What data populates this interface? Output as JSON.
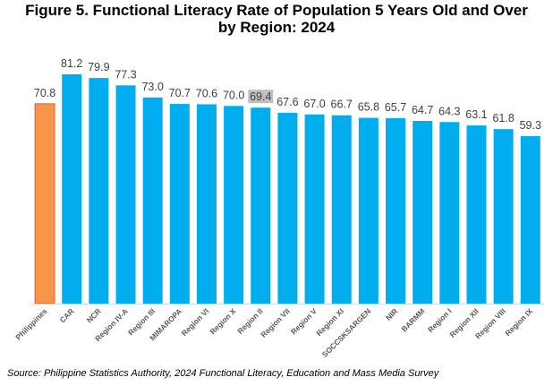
{
  "title_line1": "Figure 5. Functional Literacy Rate of Population 5 Years Old and Over",
  "title_line2": "by Region: 2024",
  "source": "Source: Philippine Statistics Authority, 2024 Functional Literacy, Education and Mass Media Survey",
  "colors": {
    "national_bar": "#F79646",
    "region_bar": "#00AEEF",
    "national_bar_border": "#C0504D",
    "highlight_label_bg": "#BFBFBF"
  },
  "chart_data": {
    "type": "bar",
    "title": "Figure 5. Functional Literacy Rate of Population 5 Years Old and Over by Region: 2024",
    "xlabel": "",
    "ylabel": "",
    "ylim": [
      0,
      90
    ],
    "grid": false,
    "legend": "none",
    "categories": [
      "Philippines",
      "CAR",
      "NCR",
      "Region IV-A",
      "Region III",
      "MIMAROPA",
      "Region VI",
      "Region X",
      "Region II",
      "Region VII",
      "Region V",
      "Region XI",
      "SOCCSKSARGEN",
      "NIR",
      "BARMM",
      "Region I",
      "Region XII",
      "Region VIII",
      "Region IX"
    ],
    "values": [
      70.8,
      81.2,
      79.9,
      77.3,
      73.0,
      70.7,
      70.6,
      70.0,
      69.4,
      67.6,
      67.0,
      66.7,
      65.8,
      65.7,
      64.7,
      64.3,
      63.1,
      61.8,
      59.3
    ],
    "value_labels": [
      "70.8",
      "81.2",
      "79.9",
      "77.3",
      "73.0",
      "70.7",
      "70.6",
      "70.0",
      "69.4",
      "67.6",
      "67.0",
      "66.7",
      "65.8",
      "65.7",
      "64.7",
      "64.3",
      "63.1",
      "61.8",
      "59.3"
    ],
    "highlighted_category": "Region II"
  }
}
